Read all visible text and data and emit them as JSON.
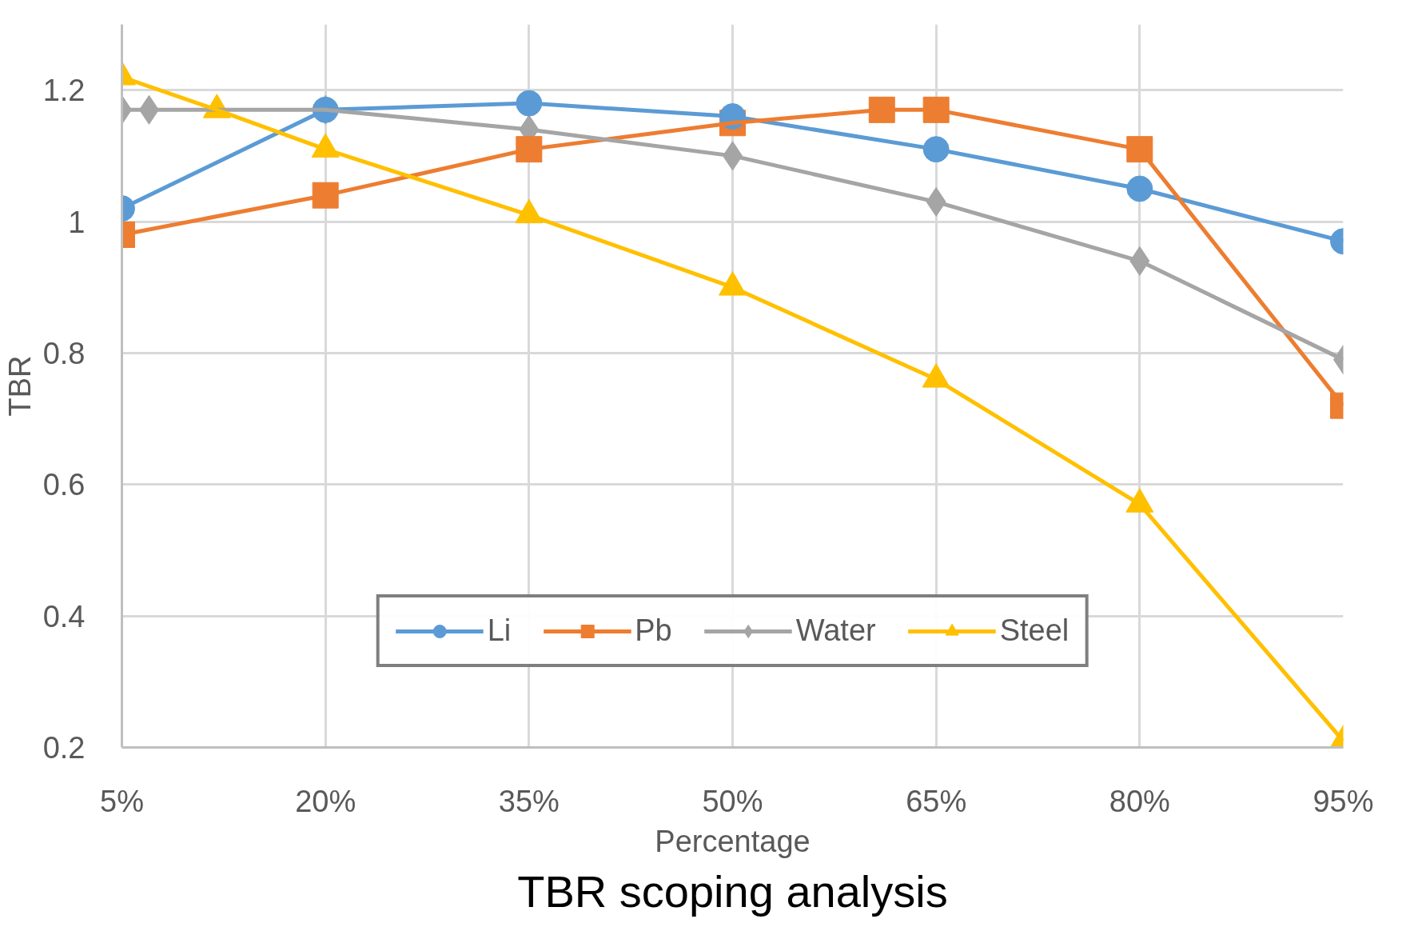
{
  "chart_data": {
    "type": "line",
    "title": "TBR scoping analysis",
    "xlabel": "Percentage",
    "ylabel": "TBR",
    "xlim": [
      5,
      95
    ],
    "ylim": [
      0.2,
      1.3
    ],
    "xticks": [
      {
        "value": 5,
        "label": "5%"
      },
      {
        "value": 20,
        "label": "20%"
      },
      {
        "value": 35,
        "label": "35%"
      },
      {
        "value": 50,
        "label": "50%"
      },
      {
        "value": 65,
        "label": "65%"
      },
      {
        "value": 80,
        "label": "80%"
      },
      {
        "value": 95,
        "label": "95%"
      }
    ],
    "yticks": [
      0.2,
      0.4,
      0.6,
      0.8,
      1,
      1.2
    ],
    "grid": true,
    "legend": "bottom",
    "line_style": "solid",
    "series": [
      {
        "name": "Li",
        "color": "#5b9bd5",
        "marker": "circle",
        "x": [
          5,
          20,
          35,
          50,
          65,
          80,
          95
        ],
        "values": [
          1.02,
          1.17,
          1.18,
          1.16,
          1.11,
          1.05,
          0.97
        ]
      },
      {
        "name": "Pb",
        "color": "#ed7d31",
        "marker": "square",
        "x": [
          5,
          20,
          35,
          50,
          61,
          65,
          80,
          95
        ],
        "values": [
          0.98,
          1.04,
          1.11,
          1.15,
          1.17,
          1.17,
          1.11,
          0.72
        ]
      },
      {
        "name": "Water",
        "color": "#a5a5a5",
        "marker": "diamond",
        "x": [
          5,
          7,
          20,
          35,
          50,
          65,
          80,
          95
        ],
        "values": [
          1.17,
          1.17,
          1.17,
          1.14,
          1.1,
          1.03,
          0.94,
          0.79
        ]
      },
      {
        "name": "Steel",
        "color": "#ffc000",
        "marker": "triangle",
        "x": [
          5,
          12,
          20,
          35,
          50,
          65,
          80,
          95
        ],
        "values": [
          1.22,
          1.17,
          1.11,
          1.01,
          0.9,
          0.76,
          0.57,
          0.21
        ]
      }
    ]
  }
}
